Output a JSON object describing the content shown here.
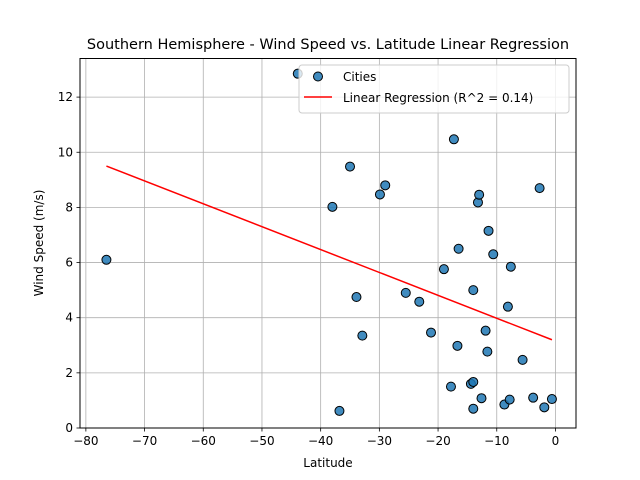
{
  "chart_data": {
    "type": "scatter",
    "title": "Southern Hemisphere - Wind Speed vs. Latitude Linear Regression",
    "xlabel": "Latitude",
    "ylabel": "Wind Speed (m/s)",
    "xlim": [
      -81,
      3.5
    ],
    "ylim": [
      0,
      13.4
    ],
    "xticks": [
      -80,
      -70,
      -60,
      -50,
      -40,
      -30,
      -20,
      -10,
      0
    ],
    "yticks": [
      0,
      2,
      4,
      6,
      8,
      10,
      12
    ],
    "grid": true,
    "legend_position": "top-right",
    "series": [
      {
        "name": "Cities",
        "kind": "scatter",
        "color": "#1f77b4",
        "edge_color": "#000000",
        "points": [
          [
            -76.5,
            6.1
          ],
          [
            -43.9,
            12.85
          ],
          [
            -38.0,
            8.02
          ],
          [
            -36.8,
            0.62
          ],
          [
            -35.0,
            9.48
          ],
          [
            -33.9,
            4.75
          ],
          [
            -32.9,
            3.35
          ],
          [
            -29.9,
            8.47
          ],
          [
            -29.0,
            8.8
          ],
          [
            -25.5,
            4.9
          ],
          [
            -23.2,
            4.58
          ],
          [
            -21.2,
            3.46
          ],
          [
            -19.0,
            5.76
          ],
          [
            -17.8,
            1.5
          ],
          [
            -17.3,
            10.47
          ],
          [
            -16.7,
            2.98
          ],
          [
            -16.5,
            6.5
          ],
          [
            -14.4,
            1.6
          ],
          [
            -14.0,
            1.67
          ],
          [
            -14.0,
            0.7
          ],
          [
            -14.0,
            5.0
          ],
          [
            -13.2,
            8.18
          ],
          [
            -13.0,
            8.46
          ],
          [
            -12.6,
            1.08
          ],
          [
            -11.9,
            3.53
          ],
          [
            -11.6,
            2.77
          ],
          [
            -11.4,
            7.15
          ],
          [
            -10.6,
            6.3
          ],
          [
            -8.7,
            0.85
          ],
          [
            -8.1,
            4.4
          ],
          [
            -7.8,
            1.03
          ],
          [
            -7.6,
            5.85
          ],
          [
            -5.6,
            2.47
          ],
          [
            -3.8,
            1.1
          ],
          [
            -2.7,
            8.7
          ],
          [
            -1.9,
            0.75
          ],
          [
            -0.6,
            1.05
          ]
        ]
      },
      {
        "name": "Linear Regression (R^2 = 0.14)",
        "kind": "line",
        "color": "#ff0000",
        "points": [
          [
            -76.5,
            9.5
          ],
          [
            -0.6,
            3.2
          ]
        ]
      }
    ]
  }
}
